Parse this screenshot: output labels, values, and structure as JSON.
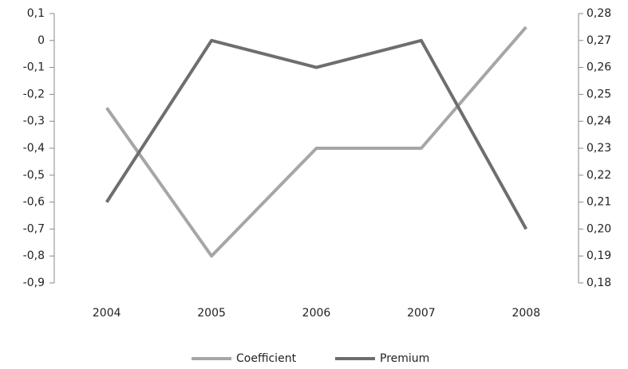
{
  "chart_data": {
    "type": "line",
    "categories": [
      "2004",
      "2005",
      "2006",
      "2007",
      "2008"
    ],
    "series": [
      {
        "name": "Coefficient",
        "color": "#a6a6a6",
        "values": [
          -0.25,
          -0.8,
          -0.4,
          -0.4,
          0.05
        ]
      },
      {
        "name": "Premium",
        "color": "#6e6e6e",
        "axis": "y2",
        "values": [
          0.21,
          0.27,
          0.26,
          0.27,
          0.2
        ]
      }
    ],
    "ylim": [
      -0.9,
      0.1
    ],
    "yticks": [
      {
        "value": 0.1,
        "label": "0,1"
      },
      0,
      {
        "value": -0.1,
        "label": "-0,1"
      },
      {
        "value": -0.2,
        "label": "-0,2"
      },
      {
        "value": -0.3,
        "label": "-0,3"
      },
      {
        "value": -0.4,
        "label": "-0,4"
      },
      {
        "value": -0.5,
        "label": "-0,5"
      },
      {
        "value": -0.6,
        "label": "-0,6"
      },
      {
        "value": -0.7,
        "label": "-0,7"
      },
      {
        "value": -0.8,
        "label": "-0,8"
      },
      {
        "value": -0.9,
        "label": "-0,9"
      }
    ],
    "y2lim": [
      0.18,
      0.28
    ],
    "y2ticks": [
      {
        "value": 0.28,
        "label": "0,28"
      },
      {
        "value": 0.27,
        "label": "0,27"
      },
      {
        "value": 0.26,
        "label": "0,26"
      },
      {
        "value": 0.25,
        "label": "0,25"
      },
      {
        "value": 0.24,
        "label": "0,24"
      },
      {
        "value": 0.23,
        "label": "0,23"
      },
      {
        "value": 0.22,
        "label": "0,22"
      },
      {
        "value": 0.21,
        "label": "0,21"
      },
      {
        "value": 0.2,
        "label": "0,20"
      },
      {
        "value": 0.19,
        "label": "0,19"
      },
      {
        "value": 0.18,
        "label": "0,18"
      }
    ],
    "grid": false,
    "legend": "bottom"
  }
}
